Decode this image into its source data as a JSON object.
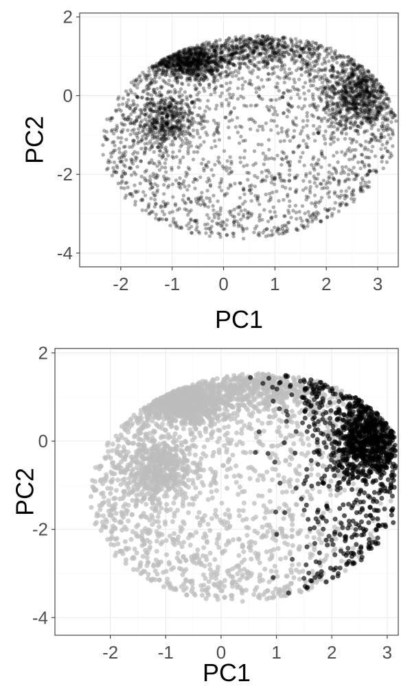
{
  "chart_data": [
    {
      "type": "scatter",
      "xlabel": "PC1",
      "ylabel": "PC2",
      "xlim": [
        -2.8,
        3.4
      ],
      "ylim": [
        -4.35,
        2.1
      ],
      "x_ticks": [
        -2,
        -1,
        0,
        1,
        2,
        3
      ],
      "y_ticks": [
        -4,
        -2,
        0,
        2
      ],
      "x_tick_labels": [
        "-2",
        "-1",
        "0",
        "1",
        "2",
        "3"
      ],
      "y_tick_labels": [
        "-4",
        "-2",
        "0",
        "2"
      ],
      "grid": true,
      "point_color": "#000000",
      "point_opacity": 0.32,
      "point_count": 4200,
      "cloud_shape": {
        "outline": "ellipse",
        "center_x": 0.5,
        "center_y": -1.05,
        "semi_axis_a": 2.9,
        "semi_axis_b": 2.55,
        "rotation_deg": 18
      },
      "dense_regions": [
        {
          "x": -0.75,
          "y": 0.9,
          "sx": 0.45,
          "sy": 0.25,
          "weight": 0.2
        },
        {
          "x": -1.1,
          "y": -0.6,
          "sx": 0.3,
          "sy": 0.35,
          "weight": 0.08
        },
        {
          "x": 2.6,
          "y": 0.05,
          "sx": 0.35,
          "sy": 0.5,
          "weight": 0.15
        },
        {
          "x": 0.8,
          "y": 1.2,
          "sx": 0.8,
          "sy": 0.25,
          "weight": 0.1
        }
      ]
    },
    {
      "type": "scatter",
      "xlabel": "PC1",
      "ylabel": "PC2",
      "xlim": [
        -3.0,
        3.2
      ],
      "ylim": [
        -4.4,
        2.1
      ],
      "x_ticks": [
        -2,
        -1,
        0,
        1,
        2,
        3
      ],
      "y_ticks": [
        -4,
        -2,
        0,
        2
      ],
      "x_tick_labels": [
        "-2",
        "-1",
        "0",
        "1",
        "2",
        "3"
      ],
      "y_tick_labels": [
        "-4",
        "-2",
        "0",
        "2"
      ],
      "grid": true,
      "groups": [
        {
          "color": "#bdbdbd",
          "opacity": 0.75,
          "region": "PC1 < ~1.5 (bulk of cloud)"
        },
        {
          "color": "#000000",
          "opacity": 0.65,
          "region": "right-hand cluster, PC1 ~ 1.2 to 3.1"
        }
      ],
      "point_count": 4200
    }
  ]
}
